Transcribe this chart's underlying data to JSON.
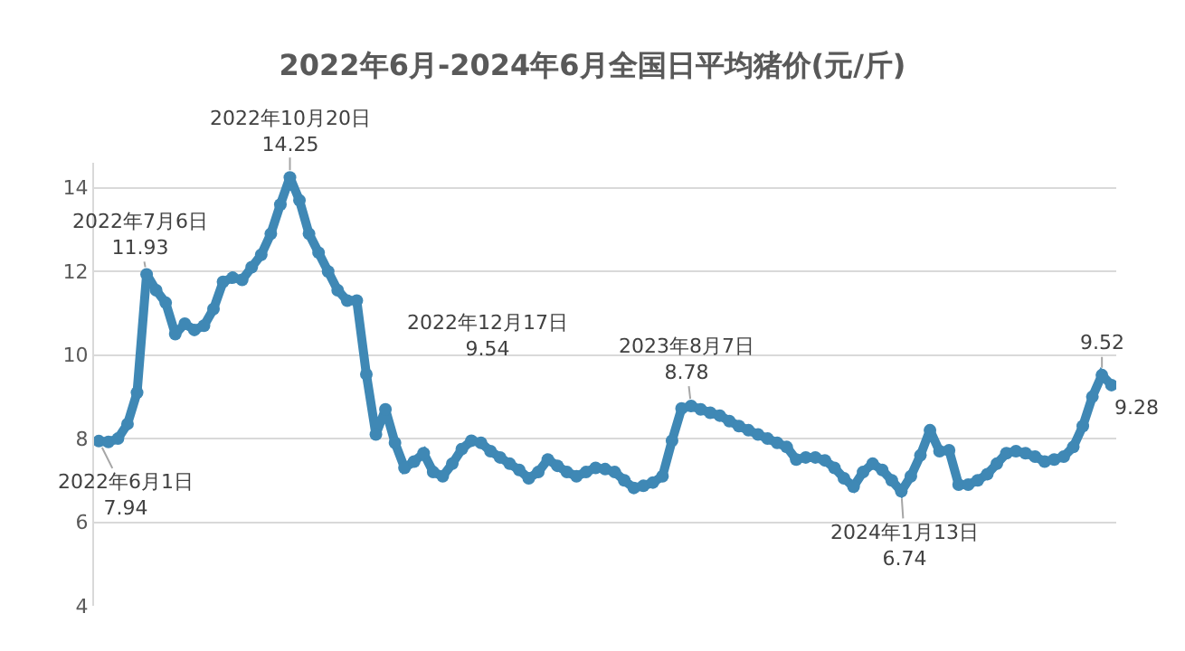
{
  "chart_data": {
    "type": "line",
    "title": "2022年6月-2024年6月全国日平均猪价(元/斤)",
    "categories": [
      null,
      null,
      null,
      null,
      null,
      null,
      null,
      null,
      null,
      null,
      null,
      null,
      null,
      null,
      null,
      null,
      null,
      null,
      null,
      null,
      null,
      null,
      null,
      null,
      null,
      null,
      null,
      null,
      null,
      null,
      null,
      null,
      null,
      null,
      null,
      null,
      null,
      null,
      null,
      null,
      null,
      null,
      null,
      null,
      null,
      null,
      null,
      null,
      null,
      null,
      null,
      null,
      null,
      null,
      null,
      null,
      null,
      null,
      null,
      null,
      null,
      null,
      null,
      null,
      null,
      null,
      null,
      null,
      null,
      null,
      null,
      null,
      null,
      null,
      null,
      null,
      null,
      null,
      null,
      null,
      null,
      null,
      null,
      null,
      null,
      null,
      null,
      null,
      null,
      null,
      null,
      null,
      null,
      null,
      null,
      null,
      null,
      null,
      null,
      null,
      null,
      null,
      null,
      null,
      null,
      null,
      null
    ],
    "series": [
      {
        "color": "#3f88b5",
        "values": [
          7.94,
          7.92,
          8.0,
          8.35,
          9.1,
          11.93,
          11.55,
          11.25,
          10.5,
          10.75,
          10.6,
          10.7,
          11.1,
          11.75,
          11.85,
          11.8,
          12.1,
          12.4,
          12.9,
          13.6,
          14.25,
          13.7,
          12.9,
          12.45,
          12.0,
          11.55,
          11.3,
          11.3,
          9.54,
          8.1,
          8.7,
          7.9,
          7.3,
          7.45,
          7.65,
          7.2,
          7.1,
          7.4,
          7.75,
          7.95,
          7.9,
          7.7,
          7.55,
          7.4,
          7.25,
          7.05,
          7.2,
          7.5,
          7.35,
          7.2,
          7.1,
          7.2,
          7.3,
          7.27,
          7.2,
          7.0,
          6.82,
          6.87,
          6.95,
          7.1,
          7.95,
          8.72,
          8.78,
          8.7,
          8.62,
          8.55,
          8.42,
          8.3,
          8.2,
          8.1,
          8.0,
          7.9,
          7.8,
          7.5,
          7.55,
          7.55,
          7.48,
          7.3,
          7.05,
          6.85,
          7.2,
          7.4,
          7.25,
          7.0,
          6.74,
          7.1,
          7.6,
          8.2,
          7.7,
          7.72,
          6.9,
          6.9,
          7.0,
          7.15,
          7.4,
          7.65,
          7.7,
          7.65,
          7.57,
          7.45,
          7.5,
          7.57,
          7.8,
          8.3,
          9.0,
          9.52,
          9.28
        ]
      }
    ],
    "ylim": [
      4,
      14.6
    ],
    "yticks": [
      4,
      6,
      8,
      10,
      12,
      14
    ],
    "grid": "y",
    "marker": "circle",
    "annotations": [
      {
        "text": "2022年6月1日\n7.94",
        "y": 7.94
      },
      {
        "text": "2022年7月6日\n11.93",
        "y": 11.93
      },
      {
        "text": "2022年10月20日\n14.25",
        "y": 14.25
      },
      "2022年12月17日\n9.54",
      {
        "text": "2023年8月7日\n8.78",
        "y": 8.78
      },
      {
        "text": "2024年1月13日\n6.74",
        "y": 6.74
      },
      {
        "text": "9.52",
        "y": 9.52
      },
      "9.28"
    ]
  }
}
